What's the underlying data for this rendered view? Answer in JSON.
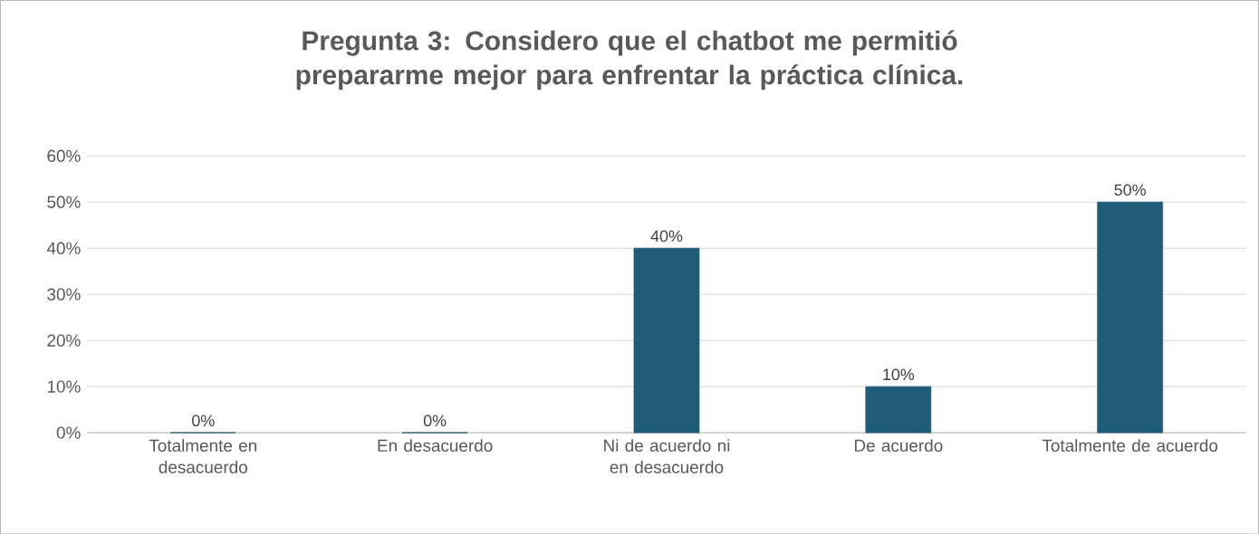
{
  "chart_data": {
    "type": "bar",
    "title": "Pregunta 3: Considero que el chatbot me permitió prepararme mejor para enfrentar la práctica clínica.",
    "categories": [
      "Totalmente en desacuerdo",
      "En desacuerdo",
      "Ni de acuerdo ni en desacuerdo",
      "De acuerdo",
      "Totalmente de acuerdo"
    ],
    "values": [
      0,
      0,
      40,
      10,
      50
    ],
    "color": "#1f5c78",
    "ylim": [
      0,
      60
    ],
    "yticks": [
      {
        "value": 0,
        "label": "0%"
      },
      {
        "value": 10,
        "label": "10%"
      },
      {
        "value": 20,
        "label": "20%"
      },
      {
        "value": 30,
        "label": "30%"
      },
      {
        "value": 40,
        "label": "40%"
      },
      {
        "value": 50,
        "label": "50%"
      },
      {
        "value": 60,
        "label": "60%"
      }
    ],
    "value_labels": [
      "0%",
      "0%",
      "40%",
      "10%",
      "50%"
    ],
    "grid": "y"
  }
}
